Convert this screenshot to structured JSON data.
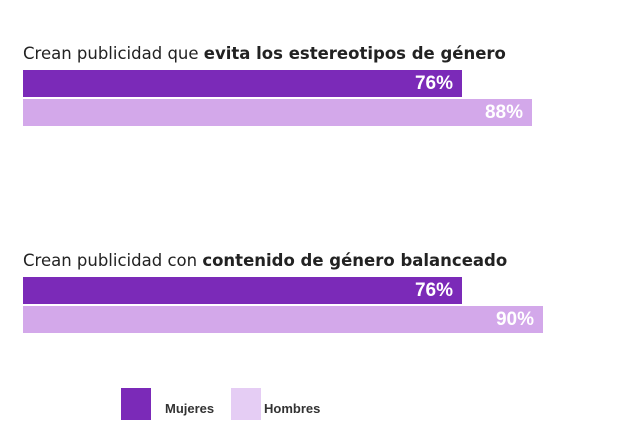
{
  "chart_data": {
    "type": "bar",
    "orientation": "horizontal",
    "groups": [
      {
        "title_prefix": "Crean publicidad que ",
        "title_bold": "evita los estereotipos de género",
        "bars": [
          {
            "series": "Mujeres",
            "value": 76,
            "label": "76%"
          },
          {
            "series": "Hombres",
            "value": 88,
            "label": "88%"
          }
        ]
      },
      {
        "title_prefix": "Crean publicidad con ",
        "title_bold": "contenido de género balanceado",
        "bars": [
          {
            "series": "Mujeres",
            "value": 76,
            "label": "76%"
          },
          {
            "series": "Hombres",
            "value": 90,
            "label": "90%"
          }
        ]
      }
    ],
    "series": [
      {
        "name": "Mujeres",
        "color": "#7b2ab8"
      },
      {
        "name": "Hombres",
        "color": "#d3a8ea"
      }
    ],
    "legend": {
      "position": "bottom",
      "items": [
        {
          "name": "Mujeres",
          "color": "#7b2ab8"
        },
        {
          "name": "Hombres",
          "color": "#e5cdf4"
        }
      ]
    },
    "xlim": [
      0,
      100
    ],
    "grid": false,
    "axes_visible": false
  }
}
